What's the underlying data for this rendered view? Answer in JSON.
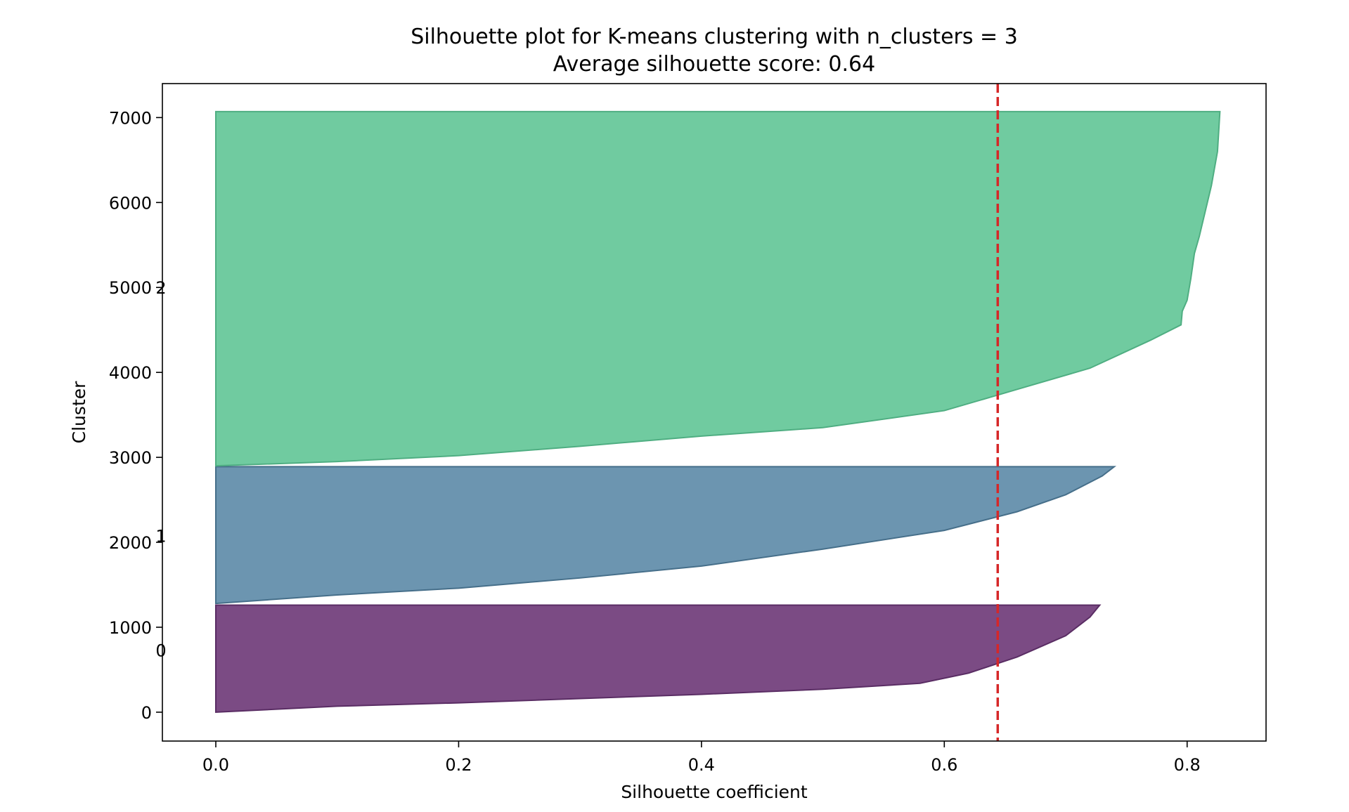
{
  "chart_data": {
    "type": "area",
    "title": "Silhouette plot for K-means clustering with n_clusters = 3",
    "subtitle": "Average silhouette score: 0.64",
    "xlabel": "Silhouette coefficient",
    "ylabel": "Cluster",
    "xlim": [
      -0.044,
      0.865
    ],
    "ylim": [
      -340,
      7400
    ],
    "x_ticks": [
      "0.0",
      "0.2",
      "0.4",
      "0.6",
      "0.8"
    ],
    "y_ticks": [
      "0",
      "1000",
      "2000",
      "3000",
      "4000",
      "5000",
      "6000",
      "7000"
    ],
    "grid": false,
    "average_score": 0.644,
    "average_line_color": "#d62728",
    "clusters": [
      {
        "label": "0",
        "color": "#7b4b84",
        "edge_color": "#5a2d64",
        "y_start": 0,
        "y_end": 1260,
        "label_y": 730,
        "profile": [
          [
            0.0,
            0
          ],
          [
            0.1,
            70
          ],
          [
            0.2,
            110
          ],
          [
            0.3,
            160
          ],
          [
            0.4,
            210
          ],
          [
            0.5,
            270
          ],
          [
            0.58,
            340
          ],
          [
            0.62,
            460
          ],
          [
            0.66,
            650
          ],
          [
            0.7,
            900
          ],
          [
            0.72,
            1120
          ],
          [
            0.728,
            1260
          ]
        ]
      },
      {
        "label": "1",
        "color": "#6c95b0",
        "edge_color": "#466f8a",
        "y_start": 1280,
        "y_end": 2890,
        "label_y": 2080,
        "profile": [
          [
            0.0,
            1280
          ],
          [
            0.1,
            1380
          ],
          [
            0.2,
            1460
          ],
          [
            0.3,
            1580
          ],
          [
            0.4,
            1720
          ],
          [
            0.5,
            1920
          ],
          [
            0.6,
            2140
          ],
          [
            0.66,
            2360
          ],
          [
            0.7,
            2560
          ],
          [
            0.73,
            2780
          ],
          [
            0.74,
            2890
          ]
        ]
      },
      {
        "label": "2",
        "color": "#70cba0",
        "edge_color": "#4fae82",
        "y_start": 2900,
        "y_end": 7070,
        "label_y": 5000,
        "profile": [
          [
            0.0,
            2900
          ],
          [
            0.1,
            2950
          ],
          [
            0.2,
            3020
          ],
          [
            0.3,
            3130
          ],
          [
            0.4,
            3250
          ],
          [
            0.5,
            3350
          ],
          [
            0.6,
            3550
          ],
          [
            0.66,
            3800
          ],
          [
            0.72,
            4050
          ],
          [
            0.77,
            4380
          ],
          [
            0.795,
            4560
          ],
          [
            0.796,
            4720
          ],
          [
            0.8,
            4850
          ],
          [
            0.803,
            5100
          ],
          [
            0.806,
            5400
          ],
          [
            0.81,
            5600
          ],
          [
            0.815,
            5900
          ],
          [
            0.82,
            6200
          ],
          [
            0.825,
            6600
          ],
          [
            0.827,
            7070
          ]
        ]
      }
    ]
  }
}
